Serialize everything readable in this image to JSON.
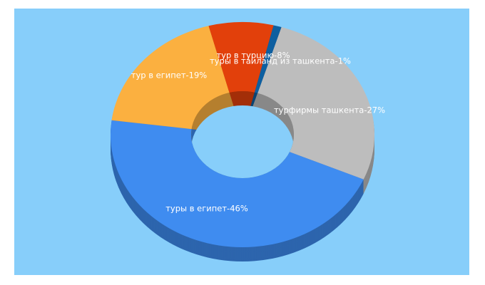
{
  "chart_data": {
    "type": "donut3d",
    "values": [
      8,
      1,
      27,
      46,
      19
    ],
    "value_labels": [
      "тур в турцию-8%",
      "туры в таиланд из ташкента-1%",
      "турфирмы ташкента-27%",
      "туры в египет-46%",
      "тур в египет-19%"
    ],
    "colors": [
      "#e2400b",
      "#0e5fa0",
      "#bdbdbd",
      "#3f8cf0",
      "#fbb040"
    ]
  }
}
